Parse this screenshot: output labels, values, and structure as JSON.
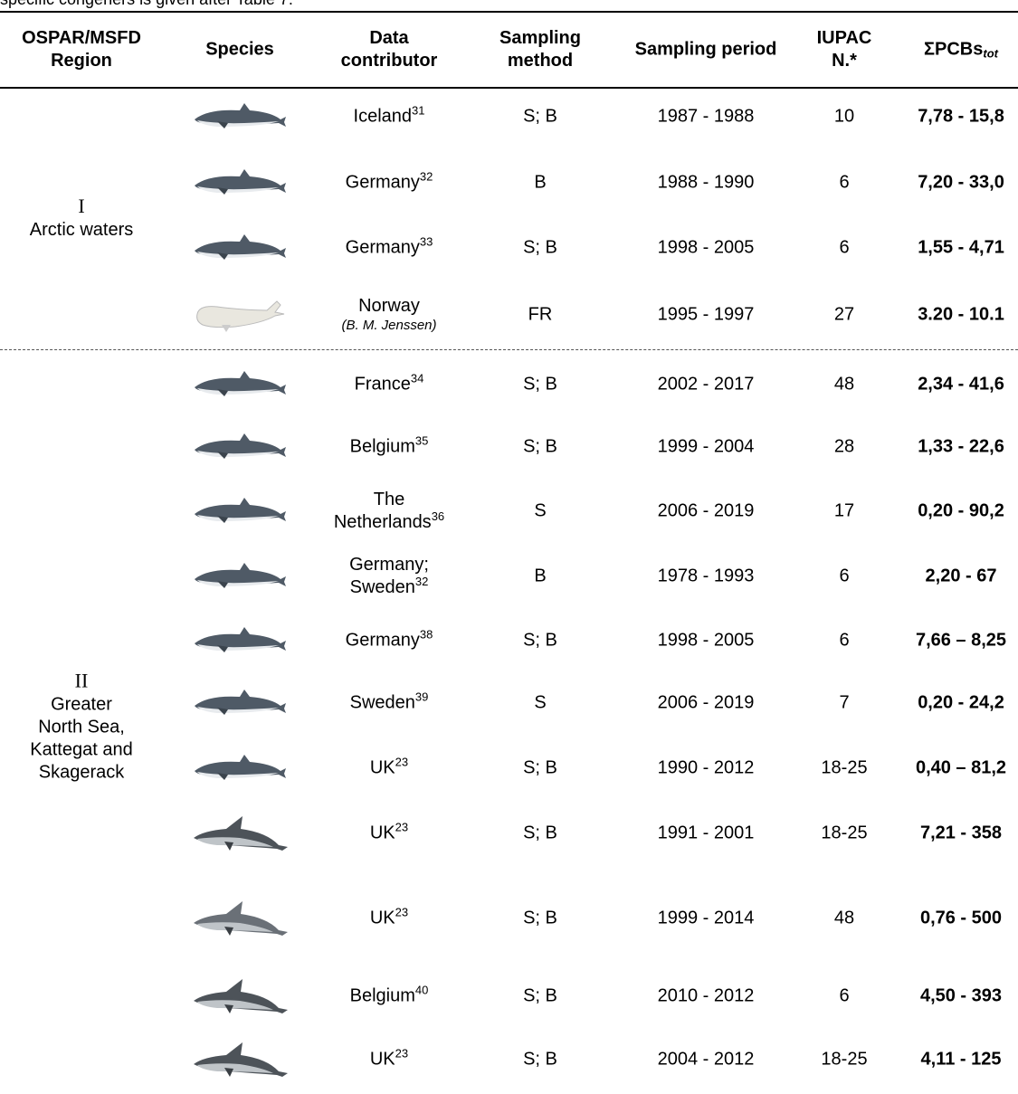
{
  "intro": "specific congeners is given after Table 7.",
  "header": {
    "columns": [
      [
        "OSPAR/MSFD",
        "Region"
      ],
      [
        "Species"
      ],
      [
        "Data",
        "contributor"
      ],
      [
        "Sampling",
        "method"
      ],
      [
        "Sampling period"
      ],
      [
        "IUPAC",
        "N.*"
      ],
      [
        "ΣPCBs"
      ]
    ],
    "pcbs_sub": "tot"
  },
  "regions": [
    {
      "numeral": "I",
      "name": [
        "Arctic waters"
      ]
    },
    {
      "numeral": "II",
      "name": [
        "Greater",
        "North Sea,",
        "Kattegat and",
        "Skagerack"
      ]
    }
  ],
  "rows": [
    {
      "contributor": [
        "Iceland"
      ],
      "ref": "31",
      "method": "S; B",
      "period": "1987 - 1988",
      "iupac": "10",
      "pcbs": "7,78 - 15,8"
    },
    {
      "contributor": [
        "Germany"
      ],
      "ref": "32",
      "method": "B",
      "period": "1988 - 1990",
      "iupac": "6",
      "pcbs": "7,20 - 33,0"
    },
    {
      "contributor": [
        "Germany"
      ],
      "ref": "33",
      "method": "S; B",
      "period": "1998 - 2005",
      "iupac": "6",
      "pcbs": "1,55 - 4,71"
    },
    {
      "contributor": [
        "Norway"
      ],
      "note": "(B. M. Jenssen)",
      "method": "FR",
      "period": "1995 - 1997",
      "iupac": "27",
      "pcbs": "3.20 - 10.1"
    },
    {
      "contributor": [
        "France"
      ],
      "ref": "34",
      "method": "S; B",
      "period": "2002 - 2017",
      "iupac": "48",
      "pcbs": "2,34 - 41,6"
    },
    {
      "contributor": [
        "Belgium"
      ],
      "ref": "35",
      "method": "S; B",
      "period": "1999 - 2004",
      "iupac": "28",
      "pcbs": "1,33 - 22,6"
    },
    {
      "contributor": [
        "The",
        "Netherlands"
      ],
      "ref": "36",
      "method": "S",
      "period": "2006 - 2019",
      "iupac": "17",
      "pcbs": "0,20 - 90,2"
    },
    {
      "contributor": [
        "Germany;",
        "Sweden"
      ],
      "ref": "32",
      "method": "B",
      "period": "1978 - 1993",
      "iupac": "6",
      "pcbs": "2,20 - 67"
    },
    {
      "contributor": [
        "Germany"
      ],
      "ref": "38",
      "method": "S; B",
      "period": "1998 - 2005",
      "iupac": "6",
      "pcbs": "7,66 – 8,25"
    },
    {
      "contributor": [
        "Sweden"
      ],
      "ref": "39",
      "method": "S",
      "period": "2006 - 2019",
      "iupac": "7",
      "pcbs": "0,20 - 24,2"
    },
    {
      "contributor": [
        "UK"
      ],
      "ref": "23",
      "method": "S; B",
      "period": "1990 - 2012",
      "iupac": "18-25",
      "pcbs": "0,40 – 81,2"
    },
    {
      "contributor": [
        "UK"
      ],
      "ref": "23",
      "method": "S; B",
      "period": "1991 - 2001",
      "iupac": "18-25",
      "pcbs": "7,21 - 358"
    },
    {
      "contributor": [
        "UK"
      ],
      "ref": "23",
      "method": "S; B",
      "period": "1999 - 2014",
      "iupac": "48",
      "pcbs": "0,76 - 500"
    },
    {
      "contributor": [
        "Belgium"
      ],
      "ref": "40",
      "method": "S; B",
      "period": "2010 - 2012",
      "iupac": "6",
      "pcbs": "4,50 - 393"
    },
    {
      "contributor": [
        "UK"
      ],
      "ref": "23",
      "method": "S; B",
      "period": "2004 - 2012",
      "iupac": "18-25",
      "pcbs": "4,11 - 125"
    }
  ]
}
